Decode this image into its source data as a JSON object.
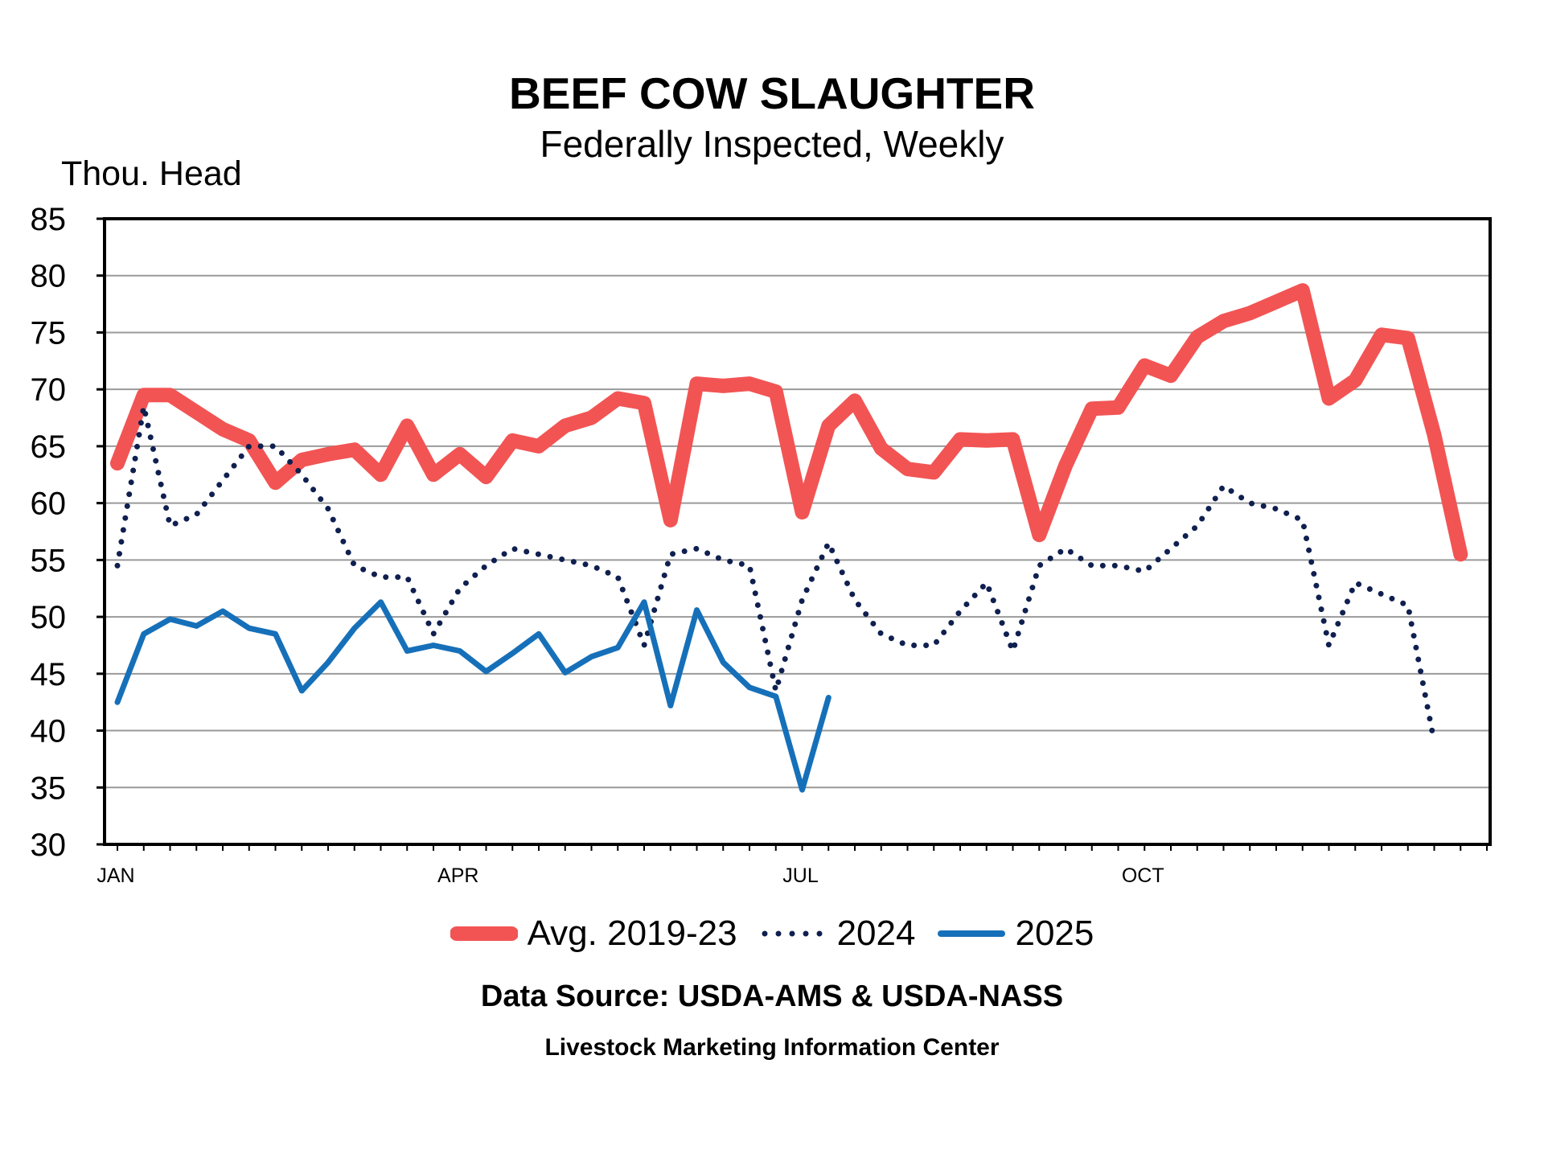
{
  "chart_data": {
    "type": "line",
    "title": "BEEF COW SLAUGHTER",
    "subtitle": "Federally Inspected, Weekly",
    "ylabel": "Thou. Head",
    "xlabel": "",
    "ylim": [
      30,
      85
    ],
    "yticks": [
      30,
      35,
      40,
      45,
      50,
      55,
      60,
      65,
      70,
      75,
      80,
      85
    ],
    "xlim": [
      1,
      53
    ],
    "xticks": [
      {
        "week": 1,
        "label": "JAN"
      },
      {
        "week": 14,
        "label": "APR"
      },
      {
        "week": 27,
        "label": "JUL"
      },
      {
        "week": 40,
        "label": "OCT"
      }
    ],
    "grid": true,
    "legend_position": "bottom",
    "series": [
      {
        "name": "Avg. 2019-23",
        "color": "#f25454",
        "style": "thick-solid",
        "values": [
          63.5,
          69.5,
          69.5,
          68.0,
          66.5,
          65.5,
          61.8,
          63.8,
          64.3,
          64.7,
          62.5,
          66.8,
          62.5,
          64.3,
          62.3,
          65.5,
          65.0,
          66.8,
          67.5,
          69.2,
          68.8,
          58.5,
          70.5,
          70.3,
          70.5,
          69.8,
          59.2,
          66.8,
          69.0,
          64.8,
          63.0,
          62.7,
          65.6,
          65.5,
          65.6,
          57.2,
          63.3,
          68.3,
          68.4,
          72.1,
          71.2,
          74.6,
          76.0,
          76.7,
          77.7,
          78.7,
          69.2,
          70.8,
          74.8,
          74.5,
          66.0,
          55.5
        ]
      },
      {
        "name": "2024",
        "color": "#0f1f4f",
        "style": "dotted",
        "values": [
          54.5,
          68.5,
          58.0,
          59.0,
          62.0,
          65.0,
          65.0,
          62.5,
          59.5,
          54.5,
          53.5,
          53.5,
          48.5,
          52.5,
          54.5,
          56.0,
          55.5,
          55.0,
          54.5,
          53.5,
          47.5,
          55.5,
          56.0,
          55.0,
          54.5,
          43.5,
          51.5,
          56.5,
          51.5,
          48.5,
          47.5,
          47.5,
          50.5,
          53.0,
          47.0,
          54.5,
          56.0,
          54.5,
          54.5,
          54.0,
          56.0,
          58.0,
          61.5,
          60.0,
          59.5,
          58.5,
          47.5,
          53.0,
          52.0,
          51.0,
          39.0
        ]
      },
      {
        "name": "2025",
        "color": "#1670b9",
        "style": "solid",
        "values": [
          42.5,
          48.5,
          49.8,
          49.2,
          50.5,
          49.0,
          48.5,
          43.5,
          46.0,
          49.0,
          51.3,
          47.0,
          47.5,
          47.0,
          45.2,
          46.8,
          48.5,
          45.1,
          46.5,
          47.3,
          51.3,
          42.2,
          50.6,
          46.0,
          43.8,
          43.0,
          34.8,
          42.9
        ]
      }
    ]
  },
  "footer": {
    "source": "Data Source:  USDA-AMS & USDA-NASS",
    "center": "Livestock Marketing Information Center"
  }
}
